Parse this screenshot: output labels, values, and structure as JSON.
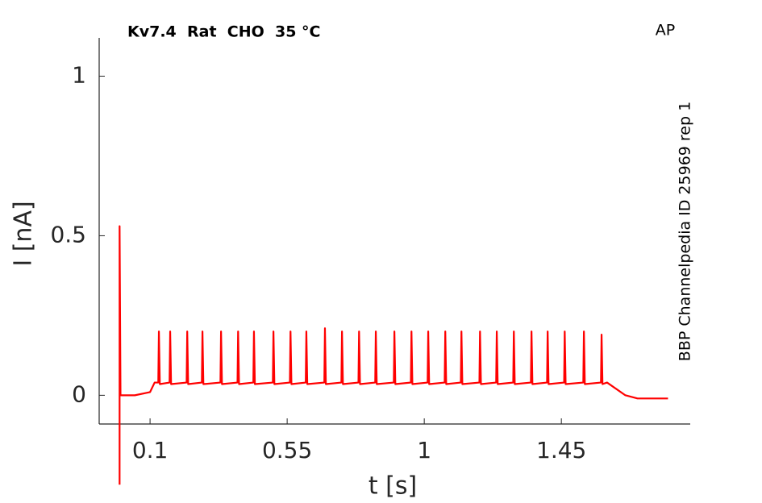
{
  "chart_data": {
    "type": "line",
    "title": "Kv7.4  Rat  CHO  35 °C",
    "annotations": [
      "AP",
      "BBP Channelpedia ID 25969 rep 1"
    ],
    "x_label": "t [s]",
    "y_label": "I [nA]",
    "xlim": [
      -0.067,
      1.873
    ],
    "ylim": [
      -0.09,
      1.12
    ],
    "xticks": [
      0.1,
      0.55,
      1,
      1.45
    ],
    "yticks": [
      0,
      0.5,
      1
    ],
    "grid": false,
    "series": [
      {
        "color": "#ff0000",
        "x": [
          0,
          0,
          0.003,
          0.05,
          0.1,
          0.115,
          0.127,
          0.129,
          0.132,
          0.164,
          0.166,
          0.169,
          0.22,
          0.222,
          0.225,
          0.27,
          0.272,
          0.275,
          0.331,
          0.333,
          0.336,
          0.387,
          0.389,
          0.392,
          0.439,
          0.441,
          0.444,
          0.503,
          0.505,
          0.508,
          0.559,
          0.561,
          0.564,
          0.611,
          0.613,
          0.616,
          0.672,
          0.674,
          0.677,
          0.728,
          0.73,
          0.733,
          0.784,
          0.786,
          0.789,
          0.839,
          0.841,
          0.844,
          0.9,
          0.902,
          0.905,
          0.956,
          0.958,
          0.961,
          1.011,
          1.013,
          1.016,
          1.067,
          1.069,
          1.072,
          1.12,
          1.122,
          1.125,
          1.181,
          1.183,
          1.186,
          1.236,
          1.238,
          1.241,
          1.292,
          1.294,
          1.297,
          1.35,
          1.352,
          1.355,
          1.403,
          1.405,
          1.408,
          1.459,
          1.461,
          1.464,
          1.522,
          1.524,
          1.527,
          1.58,
          1.582,
          1.585,
          1.6,
          1.63,
          1.66,
          1.7,
          1.8
        ],
        "values": [
          -0.28,
          0.53,
          0.0,
          0.0,
          0.01,
          0.04,
          0.04,
          0.2,
          0.035,
          0.04,
          0.2,
          0.035,
          0.04,
          0.2,
          0.035,
          0.04,
          0.2,
          0.035,
          0.04,
          0.2,
          0.035,
          0.04,
          0.2,
          0.035,
          0.04,
          0.2,
          0.035,
          0.04,
          0.2,
          0.035,
          0.04,
          0.2,
          0.035,
          0.04,
          0.2,
          0.035,
          0.04,
          0.21,
          0.035,
          0.04,
          0.2,
          0.035,
          0.04,
          0.2,
          0.035,
          0.04,
          0.2,
          0.035,
          0.04,
          0.2,
          0.035,
          0.04,
          0.2,
          0.035,
          0.04,
          0.2,
          0.035,
          0.04,
          0.2,
          0.035,
          0.04,
          0.2,
          0.035,
          0.04,
          0.2,
          0.035,
          0.04,
          0.2,
          0.035,
          0.04,
          0.2,
          0.035,
          0.04,
          0.2,
          0.035,
          0.04,
          0.2,
          0.035,
          0.04,
          0.2,
          0.035,
          0.04,
          0.2,
          0.035,
          0.04,
          0.19,
          0.035,
          0.04,
          0.02,
          0.0,
          -0.01,
          -0.01
        ]
      }
    ]
  }
}
